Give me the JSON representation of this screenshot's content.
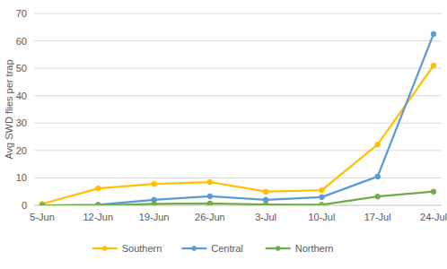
{
  "chart_data": {
    "type": "line",
    "y_label": "Avg SWD flies per trap",
    "categories": [
      "5-Jun",
      "12-Jun",
      "19-Jun",
      "26-Jun",
      "3-Jul",
      "10-Jul",
      "17-Jul",
      "24-Jul"
    ],
    "series": [
      {
        "name": "Southern",
        "color": "#ffc000",
        "marker": "circle",
        "values": [
          0.5,
          6.2,
          7.8,
          8.5,
          5.0,
          5.5,
          22.2,
          51
        ]
      },
      {
        "name": "Central",
        "color": "#5b9bd5",
        "marker": "circle",
        "values": [
          0,
          0.2,
          2,
          3.3,
          2,
          3,
          10.5,
          62.5
        ]
      },
      {
        "name": "Northern",
        "color": "#70ad47",
        "marker": "circle",
        "values": [
          0,
          0,
          0.5,
          0.7,
          0.3,
          0.2,
          3.2,
          5
        ]
      }
    ],
    "ylim": [
      0,
      70
    ],
    "yticks": [
      0,
      10,
      20,
      30,
      40,
      50,
      60,
      70
    ],
    "grid": true,
    "legend": "bottom"
  }
}
